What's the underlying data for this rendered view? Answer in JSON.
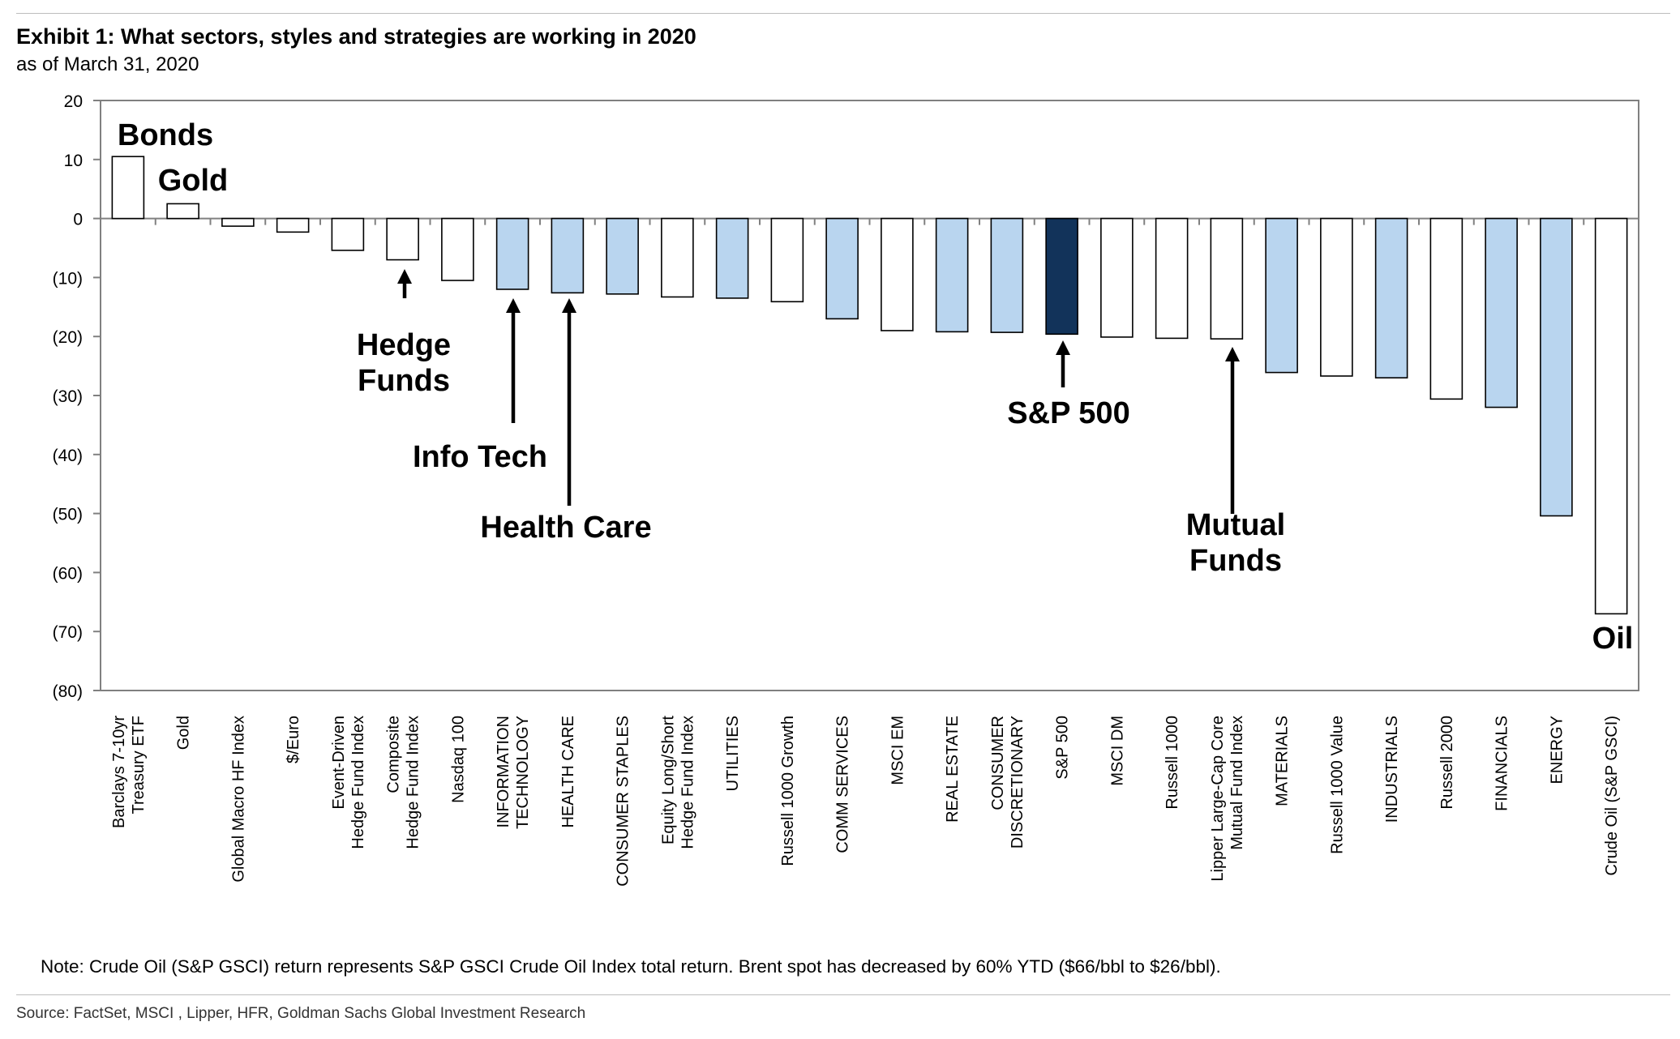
{
  "header": {
    "title": "Exhibit 1: What sectors, styles and strategies are working in 2020",
    "subtitle": "as of March 31, 2020"
  },
  "footer": {
    "note": "Note: Crude Oil (S&P GSCI) return represents S&P GSCI Crude Oil Index total return. Brent spot has decreased by 60% YTD ($66/bbl to $26/bbl).",
    "source": "Source: FactSet, MSCI , Lipper, HFR, Goldman Sachs Global Investment Research"
  },
  "chart_data": {
    "type": "bar",
    "title": "Exhibit 1: What sectors, styles and strategies are working in 2020",
    "subtitle": "as of March 31, 2020",
    "xlabel": "",
    "ylabel": "",
    "ylim": [
      -80,
      20
    ],
    "yticks": [
      20,
      10,
      0,
      -10,
      -20,
      -30,
      -40,
      -50,
      -60,
      -70,
      -80
    ],
    "ytick_labels": [
      "20",
      "10",
      "0",
      "(10)",
      "(20)",
      "(30)",
      "(40)",
      "(50)",
      "(60)",
      "(70)",
      "(80)"
    ],
    "grid": false,
    "colors": {
      "other": "#ffffff",
      "sector": "#b9d5ef",
      "sp500": "#12335a",
      "outline": "#000000"
    },
    "categories": [
      "Barclays 7-10yr Treasury ETF",
      "Gold",
      "Global Macro HF Index",
      "$/Euro",
      "Event-Driven Hedge Fund Index",
      "Composite Hedge Fund Index",
      "Nasdaq 100",
      "INFORMATION TECHNOLOGY",
      "HEALTH CARE",
      "CONSUMER STAPLES",
      "Equity Long/Short Hedge Fund Index",
      "UTILITIES",
      "Russell 1000 Growth",
      "COMM SERVICES",
      "MSCI EM",
      "REAL ESTATE",
      "CONSUMER DISCRETIONARY",
      "S&P 500",
      "MSCI DM",
      "Russell 1000",
      "Lipper Large-Cap Core Mutual Fund Index",
      "MATERIALS",
      "Russell 1000 Value",
      "INDUSTRIALS",
      "Russell 2000",
      "FINANCIALS",
      "ENERGY",
      "Crude Oil (S&P GSCI)"
    ],
    "category_labels": [
      [
        "Barclays 7-10yr",
        "Treasury ETF"
      ],
      [
        "Gold"
      ],
      [
        "Global Macro HF Index"
      ],
      [
        "$/Euro"
      ],
      [
        "Event-Driven",
        "Hedge Fund Index"
      ],
      [
        "Composite",
        "Hedge Fund Index"
      ],
      [
        "Nasdaq 100"
      ],
      [
        "INFORMATION",
        "TECHNOLOGY"
      ],
      [
        "HEALTH CARE"
      ],
      [
        "CONSUMER STAPLES"
      ],
      [
        "Equity Long/Short",
        "Hedge Fund Index"
      ],
      [
        "UTILITIES"
      ],
      [
        "Russell 1000 Growth"
      ],
      [
        "COMM SERVICES"
      ],
      [
        "MSCI EM"
      ],
      [
        "REAL ESTATE"
      ],
      [
        "CONSUMER",
        "DISCRETIONARY"
      ],
      [
        "S&P 500"
      ],
      [
        "MSCI DM"
      ],
      [
        "Russell 1000"
      ],
      [
        "Lipper Large-Cap Core",
        "Mutual Fund Index"
      ],
      [
        "MATERIALS"
      ],
      [
        "Russell 1000 Value"
      ],
      [
        "INDUSTRIALS"
      ],
      [
        "Russell 2000"
      ],
      [
        "FINANCIALS"
      ],
      [
        "ENERGY"
      ],
      [
        "Crude Oil (S&P GSCI)"
      ]
    ],
    "values": [
      10.5,
      2.5,
      -1.3,
      -2.3,
      -5.4,
      -7.0,
      -10.5,
      -12.0,
      -12.6,
      -12.8,
      -13.3,
      -13.5,
      -14.1,
      -17.0,
      -19.0,
      -19.2,
      -19.3,
      -19.6,
      -20.1,
      -20.3,
      -20.4,
      -26.1,
      -26.7,
      -27.0,
      -30.6,
      -32.0,
      -50.4,
      -67.0
    ],
    "kinds": [
      "other",
      "other",
      "other",
      "other",
      "other",
      "other",
      "other",
      "sector",
      "sector",
      "sector",
      "other",
      "sector",
      "other",
      "sector",
      "other",
      "sector",
      "sector",
      "sp500",
      "other",
      "other",
      "other",
      "sector",
      "other",
      "sector",
      "other",
      "sector",
      "sector",
      "other"
    ],
    "annotations": [
      {
        "text": [
          "Bonds"
        ],
        "target": 0
      },
      {
        "text": [
          "Gold"
        ],
        "target": 1
      },
      {
        "text": [
          "Hedge",
          "Funds"
        ],
        "target": 5
      },
      {
        "text": [
          "Info Tech"
        ],
        "target": 7
      },
      {
        "text": [
          "Health Care"
        ],
        "target": 8
      },
      {
        "text": [
          "S&P 500"
        ],
        "target": 17
      },
      {
        "text": [
          "Mutual",
          "Funds"
        ],
        "target": 20
      },
      {
        "text": [
          "Oil"
        ],
        "target": 27
      }
    ]
  }
}
